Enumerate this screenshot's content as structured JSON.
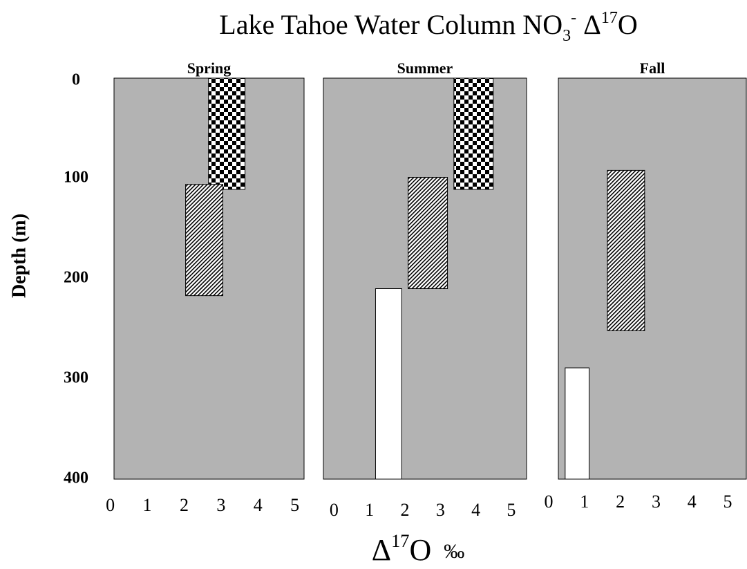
{
  "chart_data": [
    {
      "type": "range",
      "title": "Spring",
      "panel_color": "#b3b3b3",
      "ylabel": "Depth (m)",
      "xlim": [
        0.1,
        5.25
      ],
      "xticks": [
        0,
        1,
        2,
        3,
        4,
        5
      ],
      "ylim": [
        0,
        400
      ],
      "yticks": [
        0,
        100,
        200,
        300,
        400
      ],
      "y_inverted": true,
      "series": [
        {
          "pattern": "checker",
          "x": [
            2.66,
            3.65
          ],
          "y": [
            0,
            111
          ]
        },
        {
          "pattern": "hatch",
          "x": [
            2.04,
            3.05
          ],
          "y": [
            106,
            217
          ]
        }
      ]
    },
    {
      "type": "range",
      "title": "Summer",
      "panel_color": "#b3b3b3",
      "xlim": [
        -0.3,
        5.43
      ],
      "xticks": [
        0,
        1,
        2,
        3,
        4,
        5
      ],
      "ylim": [
        0,
        400
      ],
      "y_inverted": true,
      "series": [
        {
          "pattern": "checker",
          "x": [
            3.38,
            4.49
          ],
          "y": [
            0,
            111
          ]
        },
        {
          "pattern": "hatch",
          "x": [
            2.09,
            3.2
          ],
          "y": [
            99,
            210
          ]
        },
        {
          "pattern": "white",
          "x": [
            1.17,
            1.91
          ],
          "y": [
            210,
            400
          ]
        }
      ]
    },
    {
      "type": "range",
      "title": "Fall",
      "panel_color": "#b3b3b3",
      "xlim": [
        0.27,
        5.52
      ],
      "xticks": [
        0,
        1,
        2,
        3,
        4,
        5
      ],
      "ylim": [
        0,
        400
      ],
      "y_inverted": true,
      "series": [
        {
          "pattern": "hatch",
          "x": [
            1.64,
            2.68
          ],
          "y": [
            92,
            252
          ]
        },
        {
          "pattern": "white",
          "x": [
            0.46,
            1.13
          ],
          "y": [
            289,
            400
          ]
        }
      ]
    }
  ],
  "title": [
    "Lake Tahoe Water  Column NO",
    "3",
    "-",
    " Δ",
    "17",
    "O"
  ],
  "xlabel": [
    "Δ",
    "17",
    "O",
    "‰"
  ]
}
